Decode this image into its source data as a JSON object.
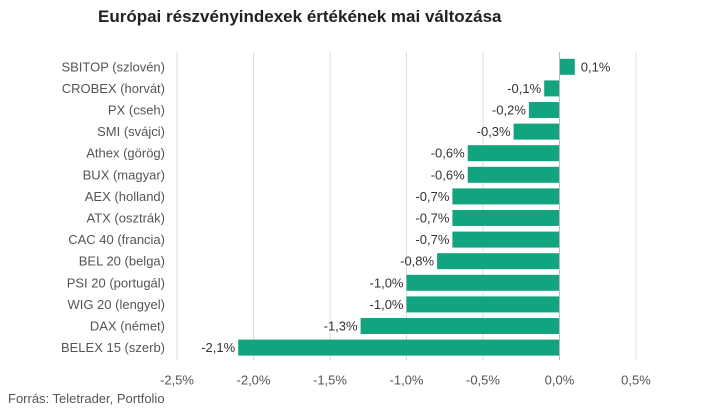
{
  "chart_data": {
    "type": "bar",
    "orientation": "horizontal",
    "title": "Európai részvényindexek értékének mai változása",
    "source": "Forrás: Teletrader, Portfolio",
    "categories": [
      "SBITOP (szlovén)",
      "CROBEX (horvát)",
      "PX (cseh)",
      "SMI (svájci)",
      "Athex (görög)",
      "BUX (magyar)",
      "AEX (holland)",
      "ATX (osztrák)",
      "CAC 40 (francia)",
      "BEL 20 (belga)",
      "PSI 20 (portugál)",
      "WIG 20 (lengyel)",
      "DAX (német)",
      "BELEX 15 (szerb)"
    ],
    "values": [
      0.1,
      -0.1,
      -0.2,
      -0.3,
      -0.6,
      -0.6,
      -0.7,
      -0.7,
      -0.7,
      -0.8,
      -1.0,
      -1.0,
      -1.3,
      -2.1
    ],
    "value_labels": [
      "0,1%",
      "-0,1%",
      "-0,2%",
      "-0,3%",
      "-0,6%",
      "-0,6%",
      "-0,7%",
      "-0,7%",
      "-0,7%",
      "-0,8%",
      "-1,0%",
      "-1,0%",
      "-1,3%",
      "-2,1%"
    ],
    "xlim": [
      -2.5,
      0.5
    ],
    "xticks": [
      -2.5,
      -2.0,
      -1.5,
      -1.0,
      -0.5,
      0.0,
      0.5
    ],
    "xtick_labels": [
      "-2,5%",
      "-2,0%",
      "-1,5%",
      "-1,0%",
      "-0,5%",
      "0,0%",
      "0,5%"
    ],
    "grid": true,
    "bar_color": "#12a37f",
    "grid_color": "#dcdcdc",
    "axis_color": "#bbbbbb"
  }
}
